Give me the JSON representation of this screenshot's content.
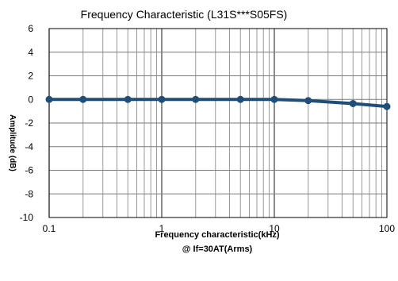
{
  "chart_data": {
    "type": "line",
    "title": "Frequency Characteristic (L31S***S05FS)",
    "xlabel": "Frequency characteristic(kHz)",
    "xlabel_sub": "@ If=30AT(Arms)",
    "ylabel": "Amplitude (dB)",
    "x_scale": "log",
    "xlim": [
      0.1,
      100
    ],
    "ylim": [
      -10,
      6
    ],
    "x_ticks": [
      0.1,
      1,
      10,
      100
    ],
    "x_tick_labels": [
      "0.1",
      "1",
      "10",
      "100"
    ],
    "y_ticks": [
      6,
      4,
      2,
      0,
      -2,
      -4,
      -6,
      -8,
      -10
    ],
    "y_tick_labels": [
      "6",
      "4",
      "2",
      "0",
      "-2",
      "-4",
      "-6",
      "-8",
      "-10"
    ],
    "grid": true,
    "series": [
      {
        "color": "#1f4e79",
        "x": [
          0.1,
          0.2,
          0.5,
          1,
          2,
          5,
          10,
          20,
          50,
          100
        ],
        "y": [
          0,
          0,
          0,
          0,
          0,
          0,
          0,
          -0.1,
          -0.35,
          -0.6
        ]
      }
    ]
  }
}
